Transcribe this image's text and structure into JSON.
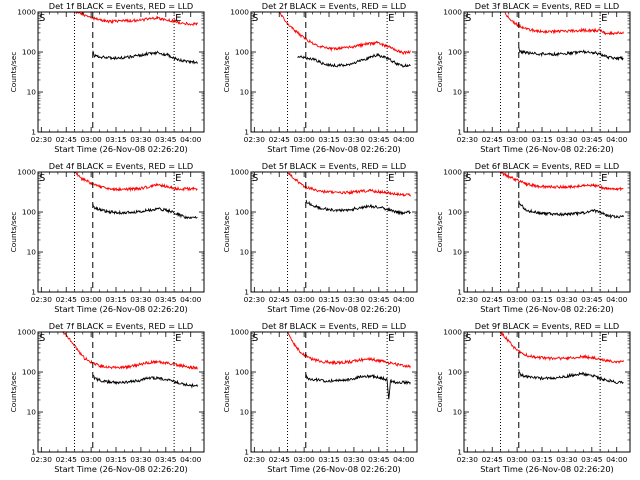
{
  "chart_data": [
    {
      "type": "line",
      "title": "Det 1f BLACK = Events, RED = LLD",
      "ylabel": "Counts/sec",
      "xlabel": "Start Time (26-Nov-08 02:26:20)",
      "xticks": [
        "02:30",
        "02:45",
        "03:00",
        "03:15",
        "03:30",
        "03:45",
        "04:00"
      ],
      "yticks": [
        "1",
        "10",
        "100",
        "1000"
      ],
      "yscale": "log",
      "ylim": [
        1,
        1000
      ],
      "xlim_minutes": [
        -2,
        98
      ],
      "vlines": [
        {
          "x": 20,
          "style": "dotted"
        },
        {
          "x": 31,
          "style": "dashed"
        },
        {
          "x": 80,
          "style": "dotted"
        }
      ],
      "markers": {
        "left": "S",
        "right": "E"
      },
      "series": [
        {
          "color": "#ff0000",
          "x": [
            20,
            24,
            28,
            31,
            36,
            42,
            50,
            58,
            64,
            70,
            76,
            82,
            86,
            90,
            94
          ],
          "values": [
            1000,
            900,
            800,
            700,
            620,
            580,
            600,
            620,
            660,
            700,
            640,
            560,
            520,
            500,
            500
          ]
        },
        {
          "color": "#000000",
          "x": [
            31,
            32,
            36,
            42,
            50,
            58,
            64,
            70,
            76,
            82,
            86,
            90,
            94
          ],
          "values": [
            105,
            80,
            75,
            70,
            72,
            80,
            90,
            95,
            85,
            65,
            60,
            58,
            55
          ]
        }
      ]
    },
    {
      "type": "line",
      "title": "Det 2f BLACK = Events, RED = LLD",
      "ylabel": "Counts/sec",
      "xlabel": "Start Time (26-Nov-08 02:26:20)",
      "xticks": [
        "02:30",
        "02:45",
        "03:00",
        "03:15",
        "03:30",
        "03:45",
        "04:00"
      ],
      "yticks": [
        "1",
        "10",
        "100",
        "1000"
      ],
      "yscale": "log",
      "ylim": [
        1,
        1000
      ],
      "xlim_minutes": [
        -2,
        98
      ],
      "vlines": [
        {
          "x": 20,
          "style": "dotted"
        },
        {
          "x": 31,
          "style": "dashed"
        },
        {
          "x": 80,
          "style": "dotted"
        }
      ],
      "markers": {
        "left": "S",
        "right": "E"
      },
      "series": [
        {
          "color": "#ff0000",
          "x": [
            15,
            20,
            26,
            31,
            38,
            46,
            54,
            62,
            68,
            74,
            80,
            86,
            90,
            94
          ],
          "values": [
            1000,
            500,
            300,
            210,
            140,
            120,
            125,
            140,
            160,
            170,
            140,
            110,
            95,
            100
          ]
        },
        {
          "color": "#000000",
          "x": [
            26,
            31,
            36,
            42,
            50,
            58,
            64,
            70,
            74,
            80,
            86,
            90,
            94
          ],
          "values": [
            80,
            70,
            65,
            50,
            45,
            50,
            60,
            75,
            85,
            70,
            50,
            45,
            45
          ]
        }
      ]
    },
    {
      "type": "line",
      "title": "Det 3f BLACK = Events, RED = LLD",
      "ylabel": "Counts/sec",
      "xlabel": "Start Time (26-Nov-08 02:26:20)",
      "xticks": [
        "02:30",
        "02:45",
        "03:00",
        "03:15",
        "03:30",
        "03:45",
        "04:00"
      ],
      "yticks": [
        "1",
        "10",
        "100",
        "1000"
      ],
      "yscale": "log",
      "ylim": [
        1,
        1000
      ],
      "xlim_minutes": [
        -2,
        98
      ],
      "vlines": [
        {
          "x": 20,
          "style": "dotted"
        },
        {
          "x": 31,
          "style": "dashed"
        },
        {
          "x": 80,
          "style": "dotted"
        }
      ],
      "markers": {
        "left": "S",
        "right": "E"
      },
      "series": [
        {
          "color": "#ff0000",
          "x": [
            22,
            26,
            31,
            36,
            42,
            50,
            58,
            64,
            70,
            76,
            80,
            84,
            90,
            94
          ],
          "values": [
            1000,
            650,
            450,
            380,
            330,
            320,
            330,
            340,
            350,
            340,
            360,
            280,
            300,
            290
          ]
        },
        {
          "color": "#000000",
          "x": [
            31,
            32,
            36,
            42,
            50,
            58,
            64,
            70,
            76,
            80,
            84,
            90,
            94
          ],
          "values": [
            125,
            100,
            95,
            90,
            88,
            90,
            95,
            100,
            95,
            90,
            75,
            70,
            70
          ]
        }
      ]
    },
    {
      "type": "line",
      "title": "Det 4f BLACK = Events, RED = LLD",
      "ylabel": "Counts/sec",
      "xlabel": "Start Time (26-Nov-08 02:26:20)",
      "xticks": [
        "02:30",
        "02:45",
        "03:00",
        "03:15",
        "03:30",
        "03:45",
        "04:00"
      ],
      "yticks": [
        "1",
        "10",
        "100",
        "1000"
      ],
      "yscale": "log",
      "ylim": [
        1,
        1000
      ],
      "xlim_minutes": [
        -2,
        98
      ],
      "vlines": [
        {
          "x": 20,
          "style": "dotted"
        },
        {
          "x": 31,
          "style": "dashed"
        },
        {
          "x": 80,
          "style": "dotted"
        }
      ],
      "markers": {
        "left": "S",
        "right": "E"
      },
      "series": [
        {
          "color": "#ff0000",
          "x": [
            20,
            24,
            31,
            36,
            42,
            50,
            58,
            64,
            70,
            76,
            82,
            86,
            90,
            94
          ],
          "values": [
            1000,
            700,
            500,
            420,
            380,
            370,
            380,
            420,
            480,
            430,
            380,
            380,
            380,
            380
          ]
        },
        {
          "color": "#000000",
          "x": [
            31,
            32,
            36,
            42,
            50,
            58,
            64,
            70,
            76,
            82,
            86,
            90,
            94
          ],
          "values": [
            150,
            130,
            110,
            100,
            95,
            100,
            110,
            120,
            110,
            90,
            75,
            70,
            72
          ]
        }
      ]
    },
    {
      "type": "line",
      "title": "Det 5f BLACK = Events, RED = LLD",
      "ylabel": "Counts/sec",
      "xlabel": "Start Time (26-Nov-08 02:26:20)",
      "xticks": [
        "02:30",
        "02:45",
        "03:00",
        "03:15",
        "03:30",
        "03:45",
        "04:00"
      ],
      "yticks": [
        "1",
        "10",
        "100",
        "1000"
      ],
      "yscale": "log",
      "ylim": [
        1,
        1000
      ],
      "xlim_minutes": [
        -2,
        98
      ],
      "vlines": [
        {
          "x": 20,
          "style": "dotted"
        },
        {
          "x": 31,
          "style": "dashed"
        },
        {
          "x": 80,
          "style": "dotted"
        }
      ],
      "markers": {
        "left": "S",
        "right": "E"
      },
      "series": [
        {
          "color": "#ff0000",
          "x": [
            20,
            24,
            28,
            31,
            36,
            42,
            50,
            58,
            64,
            70,
            76,
            82,
            86,
            90,
            94
          ],
          "values": [
            1000,
            700,
            500,
            420,
            360,
            320,
            300,
            310,
            330,
            340,
            320,
            290,
            280,
            270,
            270
          ]
        },
        {
          "color": "#000000",
          "x": [
            31,
            32,
            36,
            42,
            50,
            58,
            64,
            70,
            76,
            82,
            86,
            90,
            94
          ],
          "values": [
            200,
            170,
            140,
            120,
            110,
            115,
            130,
            140,
            130,
            110,
            100,
            95,
            100
          ]
        }
      ]
    },
    {
      "type": "line",
      "title": "Det 6f BLACK = Events, RED = LLD",
      "ylabel": "Counts/sec",
      "xlabel": "Start Time (26-Nov-08 02:26:20)",
      "xticks": [
        "02:30",
        "02:45",
        "03:00",
        "03:15",
        "03:30",
        "03:45",
        "04:00"
      ],
      "yticks": [
        "1",
        "10",
        "100",
        "1000"
      ],
      "yscale": "log",
      "ylim": [
        1,
        1000
      ],
      "xlim_minutes": [
        -2,
        98
      ],
      "vlines": [
        {
          "x": 20,
          "style": "dotted"
        },
        {
          "x": 31,
          "style": "dashed"
        },
        {
          "x": 80,
          "style": "dotted"
        }
      ],
      "markers": {
        "left": "S",
        "right": "E"
      },
      "series": [
        {
          "color": "#ff0000",
          "x": [
            20,
            24,
            31,
            36,
            42,
            50,
            58,
            64,
            70,
            76,
            80,
            84,
            90,
            94
          ],
          "values": [
            1000,
            800,
            600,
            500,
            440,
            420,
            420,
            430,
            450,
            480,
            420,
            390,
            380,
            380
          ]
        },
        {
          "color": "#000000",
          "x": [
            31,
            32,
            36,
            42,
            50,
            58,
            64,
            70,
            76,
            80,
            84,
            90,
            94
          ],
          "values": [
            190,
            150,
            110,
            95,
            90,
            88,
            90,
            95,
            110,
            100,
            80,
            75,
            75
          ]
        }
      ]
    },
    {
      "type": "line",
      "title": "Det 7f BLACK = Events, RED = LLD",
      "ylabel": "Counts/sec",
      "xlabel": "Start Time (26-Nov-08 02:26:20)",
      "xticks": [
        "02:30",
        "02:45",
        "03:00",
        "03:15",
        "03:30",
        "03:45",
        "04:00"
      ],
      "yticks": [
        "1",
        "10",
        "100",
        "1000"
      ],
      "yscale": "log",
      "ylim": [
        1,
        1000
      ],
      "xlim_minutes": [
        -2,
        98
      ],
      "vlines": [
        {
          "x": 20,
          "style": "dotted"
        },
        {
          "x": 31,
          "style": "dashed"
        },
        {
          "x": 80,
          "style": "dotted"
        }
      ],
      "markers": {
        "left": "S",
        "right": "E"
      },
      "series": [
        {
          "color": "#ff0000",
          "x": [
            13,
            18,
            22,
            26,
            31,
            36,
            42,
            50,
            58,
            64,
            70,
            76,
            82,
            86,
            90,
            94
          ],
          "values": [
            1000,
            600,
            350,
            220,
            170,
            140,
            130,
            130,
            150,
            170,
            180,
            170,
            150,
            140,
            130,
            130
          ]
        },
        {
          "color": "#000000",
          "x": [
            31,
            32,
            36,
            42,
            50,
            58,
            64,
            70,
            76,
            82,
            86,
            90,
            94
          ],
          "values": [
            80,
            70,
            60,
            55,
            55,
            60,
            70,
            70,
            65,
            55,
            50,
            45,
            48
          ]
        }
      ]
    },
    {
      "type": "line",
      "title": "Det 8f BLACK = Events, RED = LLD",
      "ylabel": "Counts/sec",
      "xlabel": "Start Time (26-Nov-08 02:26:20)",
      "xticks": [
        "02:30",
        "02:45",
        "03:00",
        "03:15",
        "03:30",
        "03:45",
        "04:00"
      ],
      "yticks": [
        "1",
        "10",
        "100",
        "1000"
      ],
      "yscale": "log",
      "ylim": [
        1,
        1000
      ],
      "xlim_minutes": [
        -2,
        98
      ],
      "vlines": [
        {
          "x": 20,
          "style": "dotted"
        },
        {
          "x": 31,
          "style": "dashed"
        },
        {
          "x": 80,
          "style": "dotted"
        }
      ],
      "markers": {
        "left": "S",
        "right": "E"
      },
      "series": [
        {
          "color": "#ff0000",
          "x": [
            20,
            24,
            28,
            31,
            36,
            42,
            50,
            58,
            64,
            70,
            76,
            80,
            84,
            88,
            92,
            94
          ],
          "values": [
            1000,
            500,
            300,
            250,
            200,
            180,
            170,
            180,
            200,
            210,
            190,
            170,
            160,
            150,
            140,
            140
          ]
        },
        {
          "color": "#000000",
          "x": [
            31,
            32,
            36,
            42,
            50,
            58,
            64,
            70,
            76,
            80,
            81,
            82,
            84,
            88,
            92,
            94
          ],
          "values": [
            80,
            70,
            65,
            60,
            60,
            65,
            75,
            80,
            70,
            65,
            20,
            60,
            55,
            55,
            55,
            55
          ]
        }
      ]
    },
    {
      "type": "line",
      "title": "Det 9f BLACK = Events, RED = LLD",
      "ylabel": "Counts/sec",
      "xlabel": "Start Time (26-Nov-08 02:26:20)",
      "xticks": [
        "02:30",
        "02:45",
        "03:00",
        "03:15",
        "03:30",
        "03:45",
        "04:00"
      ],
      "yticks": [
        "1",
        "10",
        "100",
        "1000"
      ],
      "yscale": "log",
      "ylim": [
        1,
        1000
      ],
      "xlim_minutes": [
        -2,
        98
      ],
      "vlines": [
        {
          "x": 20,
          "style": "dotted"
        },
        {
          "x": 31,
          "style": "dashed"
        },
        {
          "x": 80,
          "style": "dotted"
        }
      ],
      "markers": {
        "left": "S",
        "right": "E"
      },
      "series": [
        {
          "color": "#ff0000",
          "x": [
            20,
            24,
            28,
            31,
            36,
            42,
            50,
            58,
            64,
            70,
            76,
            82,
            86,
            90,
            94
          ],
          "values": [
            1000,
            650,
            420,
            320,
            260,
            230,
            220,
            220,
            230,
            240,
            230,
            200,
            190,
            180,
            180
          ]
        },
        {
          "color": "#000000",
          "x": [
            31,
            32,
            36,
            42,
            50,
            58,
            64,
            70,
            76,
            82,
            86,
            90,
            94
          ],
          "values": [
            110,
            85,
            75,
            70,
            70,
            75,
            85,
            90,
            80,
            65,
            60,
            55,
            55
          ]
        }
      ]
    }
  ]
}
